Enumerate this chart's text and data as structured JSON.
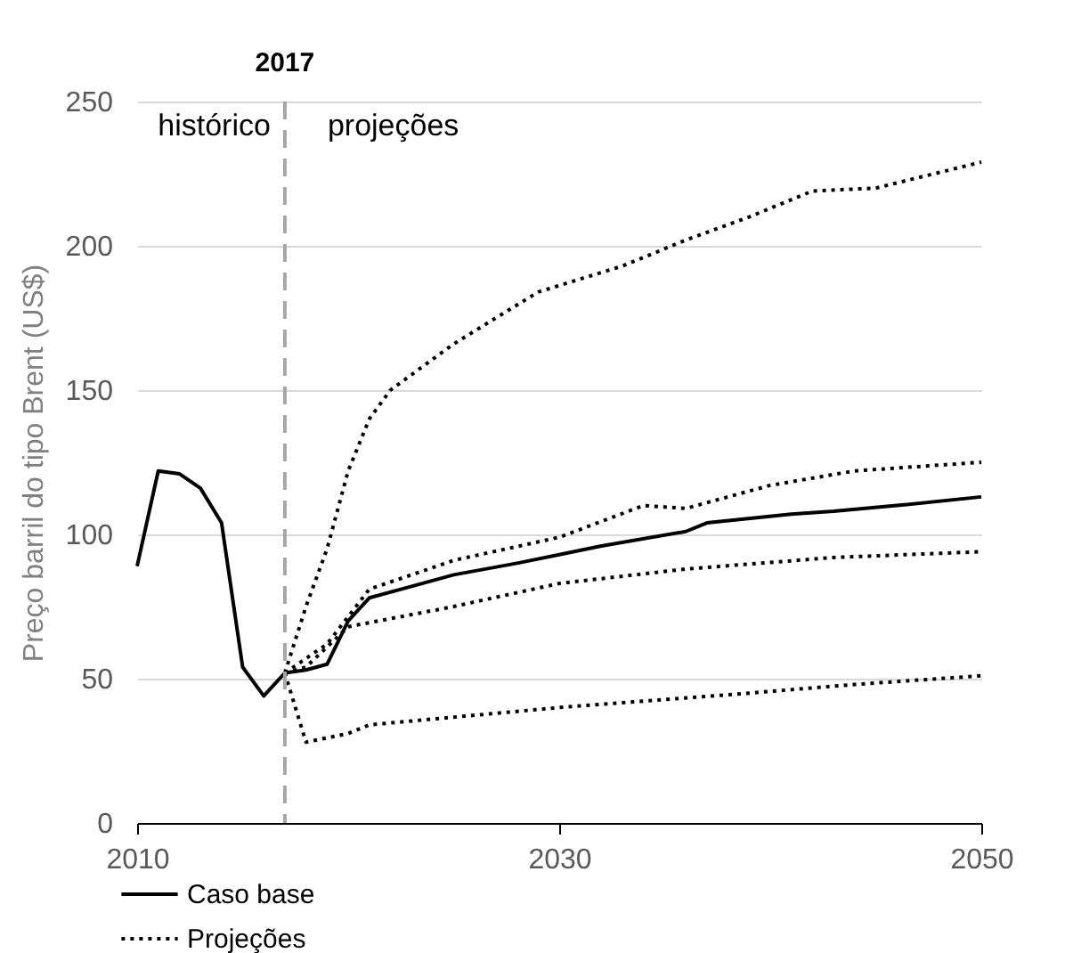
{
  "chart_data": {
    "type": "line",
    "ylabel": "Preço barril do tipo Brent (US$)",
    "x": [
      2010,
      2011,
      2012,
      2013,
      2014,
      2015,
      2016,
      2017,
      2018,
      2019,
      2020,
      2021,
      2023,
      2025,
      2028,
      2030,
      2032,
      2036,
      2037,
      2041,
      2043,
      2046,
      2050
    ],
    "series": [
      {
        "name": "Caso base",
        "color": "#000000",
        "line_style": "solid",
        "values": [
          89,
          122,
          121,
          116,
          104,
          54,
          44,
          52,
          53,
          55,
          70,
          78,
          82,
          86,
          90,
          93,
          96,
          101,
          104,
          107,
          108,
          110,
          113
        ]
      },
      {
        "name": "Projeções",
        "color": "#000000",
        "line_style": "dotted",
        "x": [
          2017,
          2018,
          2019,
          2020,
          2021,
          2022,
          2025,
          2029,
          2033,
          2036,
          2039,
          2042,
          2045,
          2050
        ],
        "values": [
          52,
          75,
          95,
          122,
          140,
          150,
          166,
          184,
          193,
          202,
          210,
          219,
          220,
          229
        ]
      },
      {
        "color": "#000000",
        "line_style": "dotted",
        "x": [
          2017,
          2019,
          2021,
          2025,
          2030,
          2034,
          2036,
          2040,
          2044,
          2050
        ],
        "values": [
          52,
          62,
          81,
          91,
          99,
          110,
          109,
          117,
          122,
          125
        ]
      },
      {
        "color": "#000000",
        "line_style": "dotted",
        "x": [
          2017,
          2018,
          2020,
          2025,
          2030,
          2036,
          2043,
          2050
        ],
        "values": [
          52,
          54,
          68,
          75,
          83,
          88,
          92,
          94
        ]
      },
      {
        "color": "#000000",
        "line_style": "dotted",
        "x": [
          2017,
          2018,
          2020,
          2021,
          2030,
          2039,
          2044,
          2050
        ],
        "values": [
          52,
          28,
          31,
          34,
          40,
          45,
          48,
          51
        ]
      }
    ],
    "xlim": [
      2010,
      2050
    ],
    "xticks": [
      2010,
      2030,
      2050
    ],
    "ylim": [
      0,
      250
    ],
    "yticks": [
      0,
      50,
      100,
      150,
      200,
      250
    ],
    "grid": "y",
    "legend": "bottom left",
    "ref_lines": [
      {
        "axis": "x",
        "value": 2017,
        "label": "2017",
        "color": "#a6a6a6",
        "line_style": "dashed"
      }
    ],
    "annotations": [
      "histórico",
      "projeções"
    ]
  }
}
